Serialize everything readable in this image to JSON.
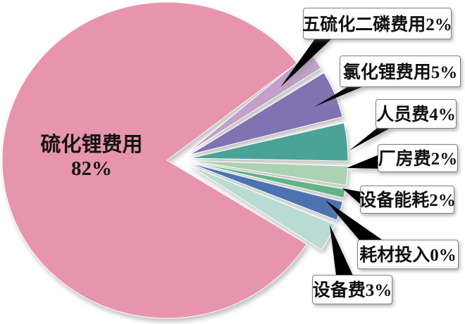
{
  "chart_data": {
    "type": "pie",
    "title": "",
    "unit": "%",
    "legend_position": "none",
    "label_style": "callout-boxes",
    "slices": [
      {
        "label": "硫化锂费用",
        "value": 82,
        "color": "#e795ad"
      },
      {
        "label": "五硫化二磷费用",
        "value": 2,
        "color": "#c2a0ca"
      },
      {
        "label": "氯化锂费用",
        "value": 5,
        "color": "#8173b2"
      },
      {
        "label": "人员费",
        "value": 4,
        "color": "#4ba398"
      },
      {
        "label": "厂房费",
        "value": 2,
        "color": "#abd2b2"
      },
      {
        "label": "耗材投入",
        "value": 0,
        "color": "#63b289"
      },
      {
        "label": "设备能耗",
        "value": 2,
        "color": "#4e72b0"
      },
      {
        "label": "设备费",
        "value": 3,
        "color": "#b9dbd4"
      }
    ]
  },
  "pie_label": {
    "line1": "硫化锂费用",
    "line2": "82%"
  },
  "callouts": [
    {
      "text": "五硫化二磷费用2%"
    },
    {
      "text": "氯化锂费用5%"
    },
    {
      "text": "人员费4%"
    },
    {
      "text": "厂房费2%"
    },
    {
      "text": "设备能耗2%"
    },
    {
      "text": "耗材投入0%"
    },
    {
      "text": "设备费3%"
    }
  ]
}
